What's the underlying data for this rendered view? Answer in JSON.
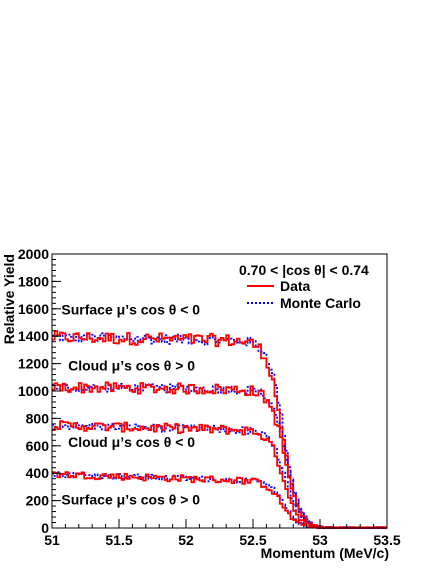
{
  "chart_data": {
    "type": "line",
    "xlabel": "Momentum (MeV/c)",
    "ylabel": "Relative Yield",
    "xlim": [
      51,
      53.5
    ],
    "ylim": [
      0,
      2000
    ],
    "x_ticks": [
      "51",
      "51.5",
      "52",
      "52.5",
      "53",
      "53.5"
    ],
    "y_ticks": [
      "0",
      "200",
      "400",
      "600",
      "800",
      "1000",
      "1200",
      "1400",
      "1600",
      "1800",
      "2000"
    ],
    "grid": false,
    "legend_title": "0.70 < |cos θ| < 0.74",
    "legend_position": "top-right",
    "legend": [
      {
        "name": "Data",
        "color": "#ff0000",
        "style": "solid"
      },
      {
        "name": "Monte Carlo",
        "color": "#0000ff",
        "style": "dotted"
      }
    ],
    "annotations": [
      {
        "text": "Surface μ’s cos θ < 0",
        "x": 51.07,
        "y": 1560
      },
      {
        "text": "Cloud μ’s cos θ > 0",
        "x": 51.12,
        "y": 1150
      },
      {
        "text": "Cloud μ’s cos θ < 0",
        "x": 51.12,
        "y": 590
      },
      {
        "text": "Surface μ’s cos θ > 0",
        "x": 51.07,
        "y": 170
      }
    ],
    "curves": [
      {
        "label": "Surface μ’s cos θ < 0",
        "plateau_start": 1385,
        "plateau_end": 1355,
        "edge": 52.72
      },
      {
        "label": "Cloud μ’s cos θ > 0",
        "plateau_start": 1020,
        "plateau_end": 1000,
        "edge": 52.74
      },
      {
        "label": "Cloud μ’s cos θ < 0",
        "plateau_start": 740,
        "plateau_end": 700,
        "edge": 52.73
      },
      {
        "label": "Surface μ’s cos θ > 0",
        "plateau_start": 385,
        "plateau_end": 330,
        "edge": 52.72
      }
    ],
    "bin_width": 0.02,
    "series": [
      {
        "name": "Data",
        "color": "#ff0000"
      },
      {
        "name": "Monte Carlo",
        "color": "#0000ff"
      }
    ]
  }
}
